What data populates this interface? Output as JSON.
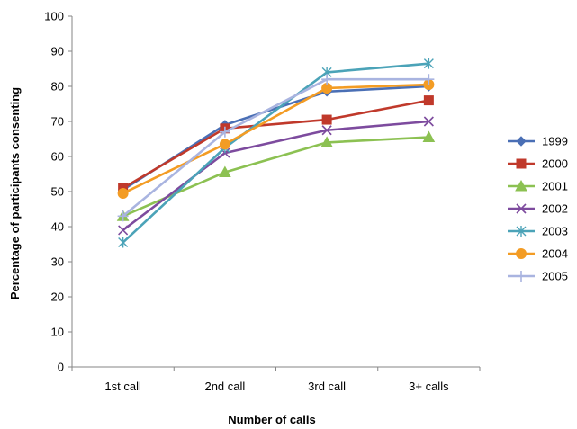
{
  "chart_data": {
    "type": "line",
    "title": "",
    "xlabel": "Number of calls",
    "ylabel": "Percentage of participants consenting",
    "categories": [
      "1st call",
      "2nd call",
      "3rd call",
      "3+ calls"
    ],
    "ylim": [
      0,
      100
    ],
    "yticks": [
      0,
      10,
      20,
      30,
      40,
      50,
      60,
      70,
      80,
      90,
      100
    ],
    "grid": false,
    "legend_position": "right",
    "series": [
      {
        "name": "1999",
        "color": "#4a6fb5",
        "marker": "diamond",
        "values": [
          50.5,
          69.0,
          78.5,
          80.0
        ]
      },
      {
        "name": "2000",
        "color": "#c0392b",
        "marker": "square",
        "values": [
          51.0,
          68.0,
          70.5,
          76.0
        ]
      },
      {
        "name": "2001",
        "color": "#8cc152",
        "marker": "triangle",
        "values": [
          43.0,
          55.5,
          64.0,
          65.5
        ]
      },
      {
        "name": "2002",
        "color": "#7d4b9e",
        "marker": "x",
        "values": [
          39.0,
          61.0,
          67.5,
          70.0
        ]
      },
      {
        "name": "2003",
        "color": "#4ba3b8",
        "marker": "star",
        "values": [
          35.5,
          62.5,
          84.0,
          86.5
        ]
      },
      {
        "name": "2004",
        "color": "#f39c24",
        "marker": "circle",
        "values": [
          49.5,
          63.5,
          79.5,
          80.5
        ]
      },
      {
        "name": "2005",
        "color": "#a9b4e0",
        "marker": "plus",
        "values": [
          43.0,
          67.0,
          82.0,
          82.0
        ]
      }
    ]
  }
}
